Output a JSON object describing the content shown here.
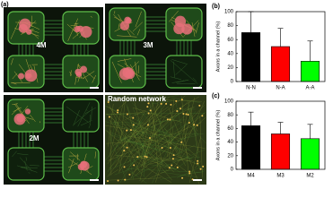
{
  "panel_a": {
    "label": "(a)",
    "images": [
      "4M",
      "3M",
      "2M",
      "Random network"
    ]
  },
  "chart_data": [
    {
      "type": "bar",
      "panel_label": "(b)",
      "y_label": "Axons in a channel (%)",
      "categories": [
        "N-N",
        "N-A",
        "A-A"
      ],
      "values": [
        70,
        50,
        29
      ],
      "errors": [
        30,
        26,
        29
      ],
      "colors": [
        "#000000",
        "#ff0000",
        "#00ff00"
      ],
      "ylim": [
        0,
        100
      ],
      "yticks": [
        0,
        20,
        40,
        60,
        80,
        100
      ]
    },
    {
      "type": "bar",
      "panel_label": "(c)",
      "y_label": "Axons in a channel (%)",
      "categories": [
        "M4",
        "M3",
        "M2"
      ],
      "values": [
        64,
        52,
        45
      ],
      "errors": [
        20,
        17,
        21
      ],
      "colors": [
        "#000000",
        "#ff0000",
        "#00ff00"
      ],
      "ylim": [
        0,
        100
      ],
      "yticks": [
        0,
        20,
        40,
        60,
        80,
        100
      ]
    }
  ]
}
